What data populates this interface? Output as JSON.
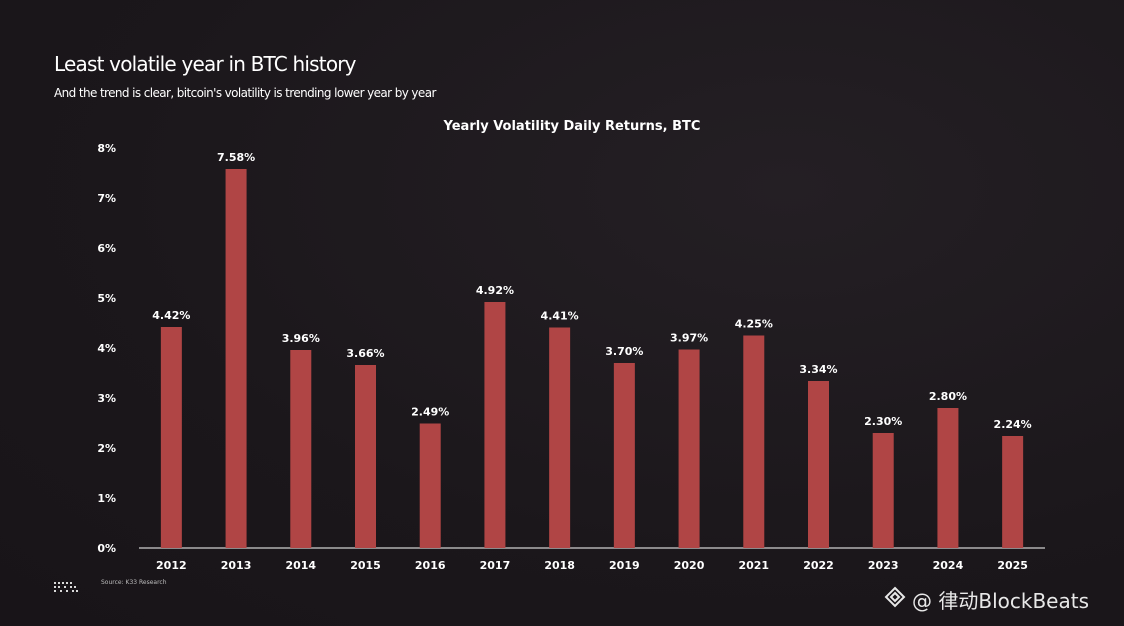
{
  "header": {
    "title": "Least volatile year in BTC history",
    "subtitle": "And the trend is clear, bitcoin's volatility is trending lower year by year"
  },
  "footer": {
    "source": "Source: K33 Research",
    "watermark": "@ 律动BlockBeats"
  },
  "colors": {
    "bar": "#b04545",
    "text": "#ffffff",
    "background": "#1c181c"
  },
  "chart_data": {
    "type": "bar",
    "title": "Yearly Volatility Daily Returns, BTC",
    "categories": [
      "2012",
      "2013",
      "2014",
      "2015",
      "2016",
      "2017",
      "2018",
      "2019",
      "2020",
      "2021",
      "2022",
      "2023",
      "2024",
      "2025"
    ],
    "values": [
      4.42,
      7.58,
      3.96,
      3.66,
      2.49,
      4.92,
      4.41,
      3.7,
      3.97,
      4.25,
      3.34,
      2.3,
      2.8,
      2.24
    ],
    "data_labels": [
      "4.42%",
      "7.58%",
      "3.96%",
      "3.66%",
      "2.49%",
      "4.92%",
      "4.41%",
      "3.70%",
      "3.97%",
      "4.25%",
      "3.34%",
      "2.30%",
      "2.80%",
      "2.24%"
    ],
    "yticks": [
      "0%",
      "1%",
      "2%",
      "3%",
      "4%",
      "5%",
      "6%",
      "7%",
      "8%"
    ],
    "ylim": [
      0,
      8
    ],
    "grid": false,
    "legend": "none"
  }
}
